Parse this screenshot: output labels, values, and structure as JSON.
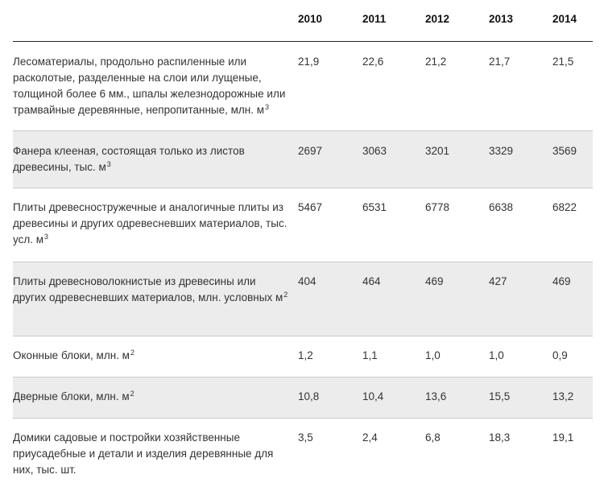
{
  "header": {
    "years": [
      "2010",
      "2011",
      "2012",
      "2013",
      "2014"
    ]
  },
  "rows": [
    {
      "label": "Лесоматериалы, продольно распиленные или расколотые, разделенные на слои или лущеные, толщиной более 6 мм., шпалы железнодорожные или трамвайные деревянные, непропитанные, млн. м",
      "sup": "3",
      "values": [
        "21,9",
        "22,6",
        "21,2",
        "21,7",
        "21,5"
      ]
    },
    {
      "label": "Фанера клееная, состоящая только из листов древесины, тыс. м",
      "sup": "3",
      "values": [
        "2697",
        "3063",
        "3201",
        "3329",
        "3569"
      ]
    },
    {
      "label": "Плиты древесностружечные и аналогичные плиты из древесины и других одревесневших материалов, тыс. усл. м",
      "sup": "3",
      "values": [
        "5467",
        "6531",
        "6778",
        "6638",
        "6822"
      ]
    },
    {
      "label": "Плиты древесноволокнистые из древесины или других одревесневших материалов, млн. условных м",
      "sup": "2",
      "values": [
        "404",
        "464",
        "469",
        "427",
        "469"
      ]
    },
    {
      "label": "Оконные блоки, млн. м",
      "sup": "2",
      "values": [
        "1,2",
        "1,1",
        "1,0",
        "1,0",
        "0,9"
      ]
    },
    {
      "label": "Дверные блоки, млн. м",
      "sup": "2",
      "values": [
        "10,8",
        "10,4",
        "13,6",
        "15,5",
        "13,2"
      ]
    },
    {
      "label": "Домики садовые и постройки хозяйственные приусадебные и детали и изделия деревянные для них, тыс. шт.",
      "sup": "",
      "values": [
        "3,5",
        "2,4",
        "6,8",
        "18,3",
        "19,1"
      ]
    }
  ]
}
